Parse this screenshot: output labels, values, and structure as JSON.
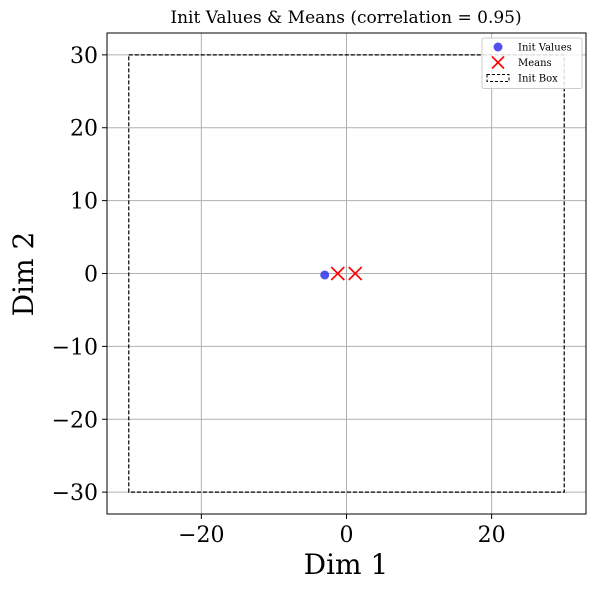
{
  "chart_data": {
    "type": "scatter",
    "title": "Init Values & Means (correlation = 0.95)",
    "xlabel": "Dim 1",
    "ylabel": "Dim 2",
    "xlim": [
      -33,
      33
    ],
    "ylim": [
      -33,
      33
    ],
    "xticks": [
      -20,
      0,
      20
    ],
    "xtick_labels": [
      "−20",
      "0",
      "20"
    ],
    "yticks": [
      -30,
      -20,
      -10,
      0,
      10,
      20,
      30
    ],
    "ytick_labels": [
      "−30",
      "−20",
      "−10",
      "0",
      "10",
      "20",
      "30"
    ],
    "grid": true,
    "legend_position": "top-right",
    "series": [
      {
        "name": "Init Values",
        "kind": "point",
        "color": "#3333ee",
        "points": [
          [
            -3.0,
            -0.2
          ]
        ]
      },
      {
        "name": "Means",
        "kind": "cross",
        "color": "#ff0000",
        "points": [
          [
            -1.2,
            0.0
          ],
          [
            1.2,
            0.0
          ]
        ]
      },
      {
        "name": "Init Box",
        "kind": "box",
        "color": "#000000",
        "bounds": [
          -30,
          30,
          -30,
          30
        ]
      }
    ]
  }
}
